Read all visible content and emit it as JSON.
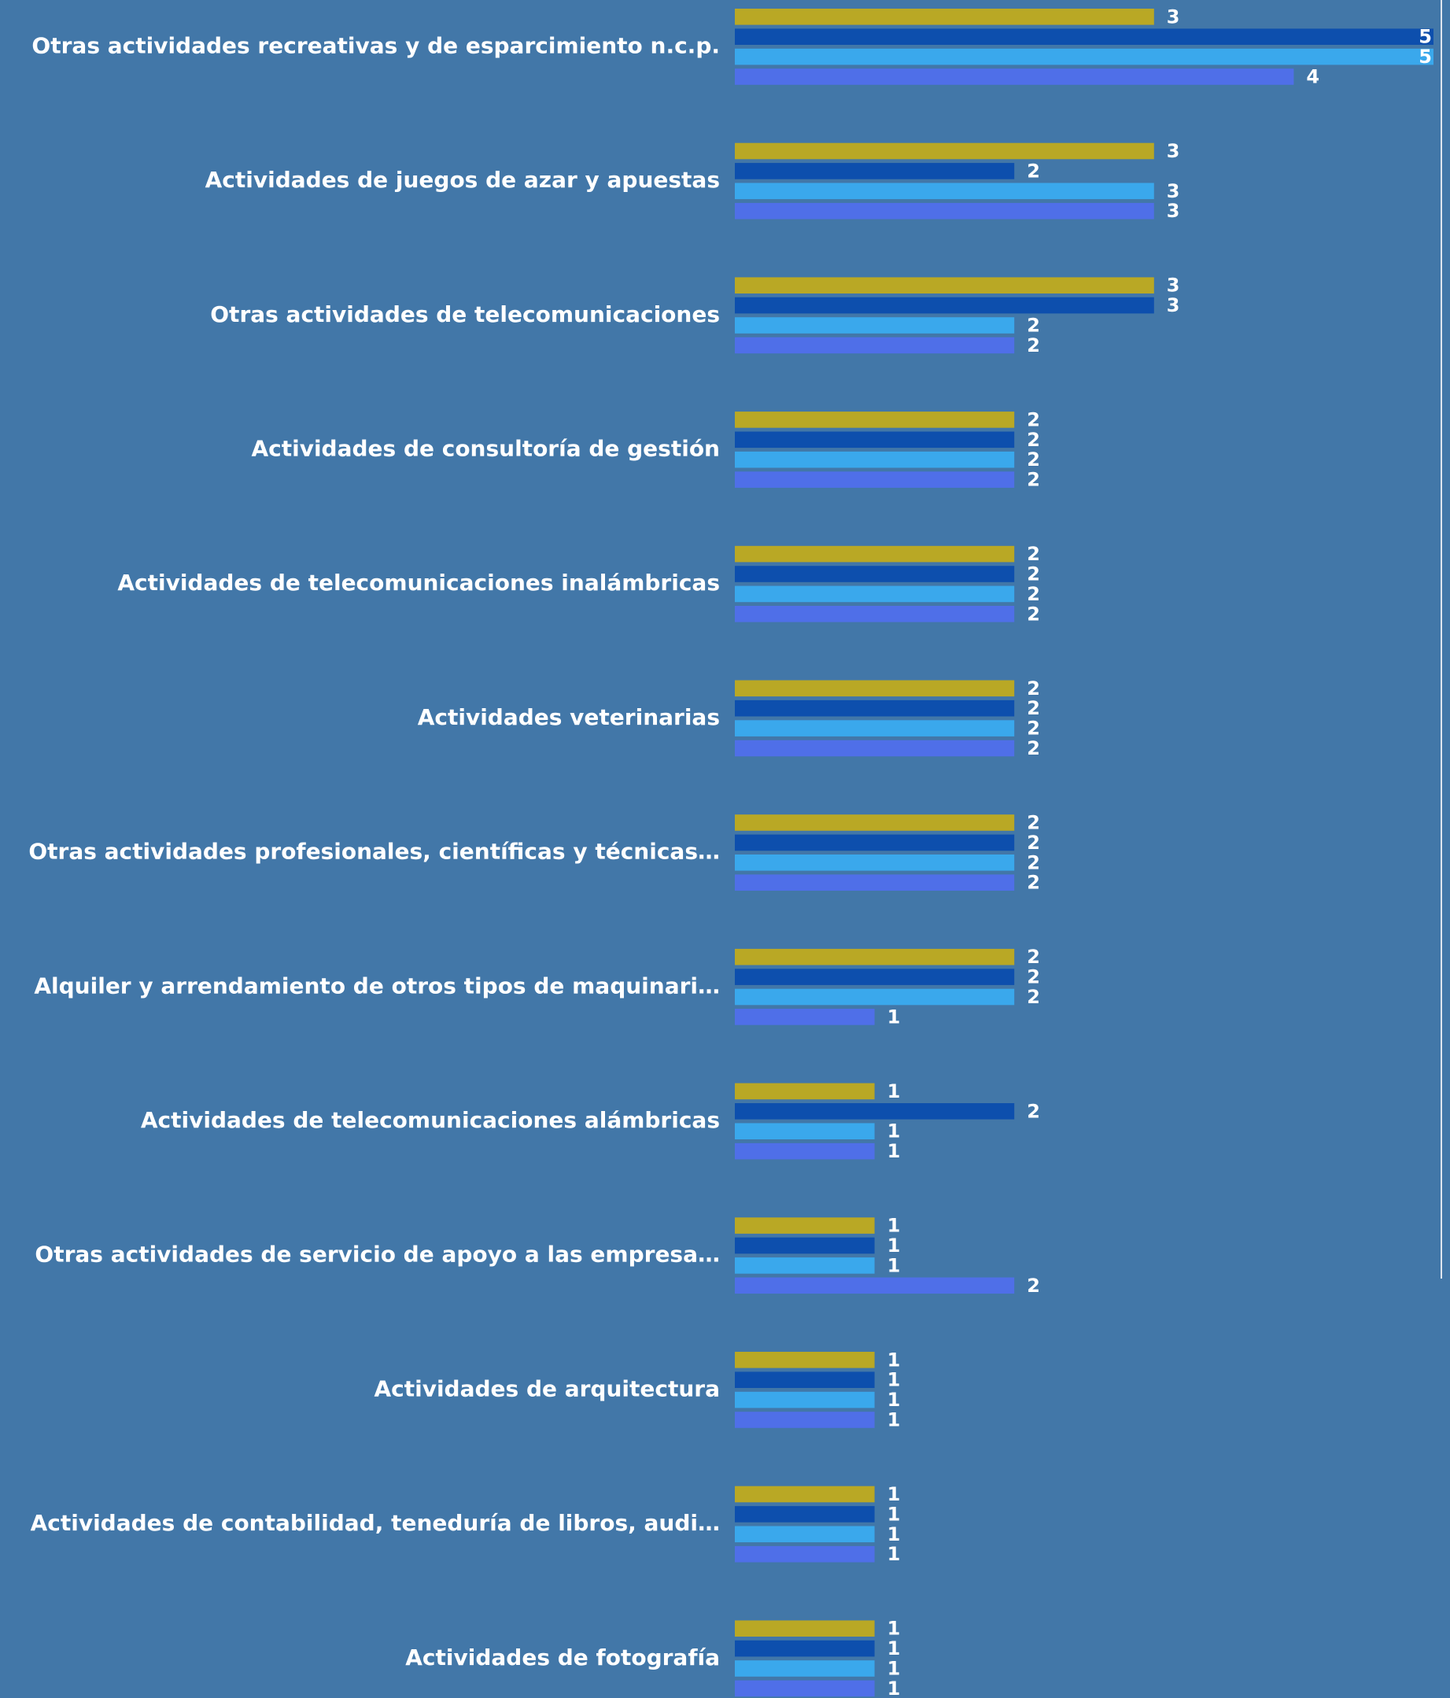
{
  "chart_data": {
    "type": "hbar",
    "categories": [
      "Otras actividades recreativas y de esparcimiento n.c.p.",
      "Actividades de juegos de azar y apuestas",
      "Otras actividades de telecomunicaciones",
      "Actividades de consultoría de gestión",
      "Actividades de telecomunicaciones inalámbricas",
      "Actividades veterinarias",
      "Otras actividades profesionales, científicas y técnicas…",
      "Alquiler y arrendamiento de otros tipos de maquinari…",
      "Actividades de telecomunicaciones alámbricas",
      "Otras actividades de servicio de apoyo a las empresa…",
      "Actividades de arquitectura",
      "Actividades de contabilidad, teneduría de libros, audi…",
      "Actividades de fotografía"
    ],
    "series": [
      {
        "color": "#b9a825",
        "values": [
          3,
          3,
          3,
          2,
          2,
          2,
          2,
          2,
          1,
          1,
          1,
          1,
          1
        ]
      },
      {
        "color": "#0d4fad",
        "values": [
          5,
          2,
          3,
          2,
          2,
          2,
          2,
          2,
          2,
          1,
          1,
          1,
          1
        ]
      },
      {
        "color": "#3aa8ec",
        "values": [
          5,
          3,
          2,
          2,
          2,
          2,
          2,
          2,
          1,
          1,
          1,
          1,
          1
        ]
      },
      {
        "color": "#4f6fe8",
        "values": [
          4,
          3,
          2,
          2,
          2,
          2,
          2,
          1,
          1,
          2,
          1,
          1,
          1
        ]
      }
    ],
    "xlim": [
      0,
      5
    ]
  }
}
